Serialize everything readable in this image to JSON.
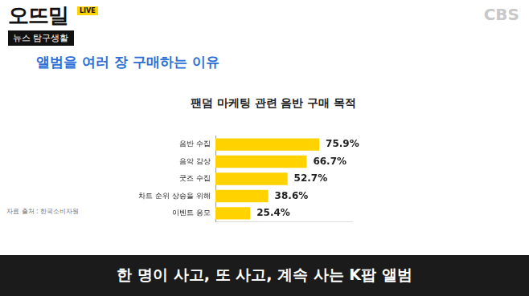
{
  "chart_data": {
    "type": "bar",
    "orientation": "horizontal",
    "title": "팬덤 마케팅 관련 음반 구매 목적",
    "annotations": [
      "자료 출처 : 한국소비자원"
    ],
    "categories": [
      "음반 수집",
      "음악 감상",
      "굿즈 수집",
      "차트 순위 상승을 위해",
      "이벤트 응모"
    ],
    "values": [
      75.9,
      66.7,
      52.7,
      38.6,
      25.4
    ],
    "value_labels": [
      "75.9%",
      "66.7%",
      "52.7%",
      "38.6%",
      "25.4%"
    ],
    "data_labels": true,
    "color": "#ffd200",
    "xlim": [
      0,
      100
    ],
    "grid": false,
    "tick_labels": "y"
  },
  "screen": {
    "logo": "오뜨밀",
    "live": "LIVE",
    "program": "뉴스 탐구생활",
    "broadcaster": "CBS",
    "heading": "앨범을 여러 장 구매하는 이유",
    "caption": "한 명이 사고, 또 사고, 계속 사는 K팝 앨범"
  }
}
